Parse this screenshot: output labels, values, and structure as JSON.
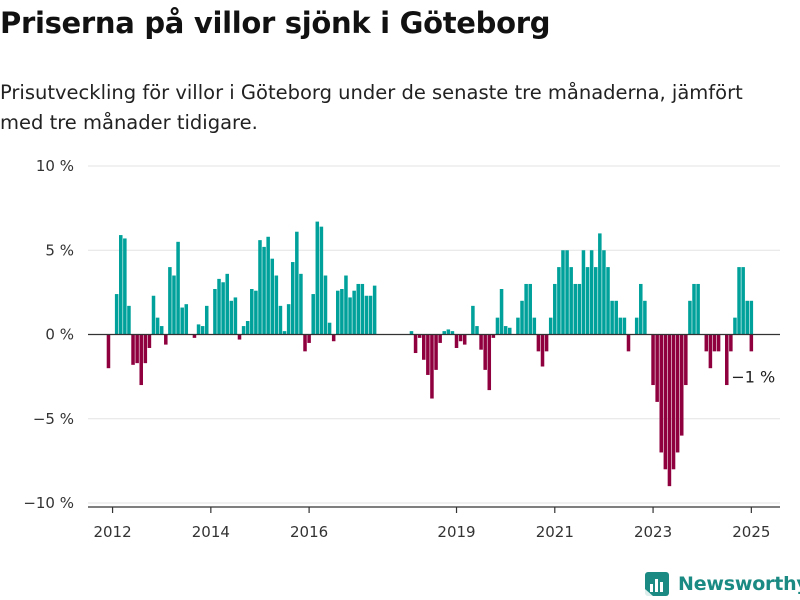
{
  "brand": {
    "name": "Newsworthy",
    "icon": "bar-chart-logo-icon",
    "color": "#1b8a83"
  },
  "chart_data": {
    "type": "bar",
    "title": "Priserna på villor sjönk i Göteborg",
    "subtitle": "Prisutveckling för villor i Göteborg under de senaste tre månaderna, jämfört med tre månader tidigare.",
    "xlabel": "",
    "ylabel": "",
    "ylim": [
      -10,
      10
    ],
    "xlim": [
      "2011-07",
      "2025-08"
    ],
    "grid": true,
    "legend": "none",
    "y_ticks": [
      {
        "value": 10,
        "label": "10 %"
      },
      {
        "value": 5,
        "label": "5 %"
      },
      {
        "value": 0,
        "label": "0 %"
      },
      {
        "value": -5,
        "label": "−5 %"
      },
      {
        "value": -10,
        "label": "−10 %"
      }
    ],
    "x_ticks": [
      {
        "date": "2012-01",
        "label": "2012"
      },
      {
        "date": "2014-01",
        "label": "2014"
      },
      {
        "date": "2016-01",
        "label": "2016"
      },
      {
        "date": "2019-01",
        "label": "2019"
      },
      {
        "date": "2021-01",
        "label": "2021"
      },
      {
        "date": "2023-01",
        "label": "2023"
      },
      {
        "date": "2025-01",
        "label": "2025"
      }
    ],
    "colors": {
      "positive": "#00a19a",
      "negative": "#8f003f"
    },
    "annotation": {
      "label": "−1 %",
      "date": "2025-01",
      "value": -1
    },
    "series": [
      {
        "start": "2011-12",
        "end": "2017-08",
        "values": [
          -2.0,
          0,
          2.4,
          5.9,
          5.7,
          1.7,
          -1.8,
          -1.7,
          -3.0,
          -1.7,
          -0.8,
          2.3,
          1.0,
          0.5,
          -0.6,
          4.0,
          3.5,
          5.5,
          1.6,
          1.8,
          0,
          -0.2,
          0.6,
          0.5,
          1.7,
          0,
          2.7,
          3.3,
          3.1,
          3.6,
          2.0,
          2.2,
          -0.3,
          0.5,
          0.8,
          2.7,
          2.6,
          5.6,
          5.2,
          5.8,
          4.5,
          3.5,
          1.7,
          0.2,
          1.8,
          4.3,
          6.1,
          3.6,
          -1.0,
          -0.5,
          2.4,
          6.7,
          6.4,
          3.5,
          0.7,
          -0.4,
          2.6,
          2.7,
          3.5,
          2.2,
          2.6,
          3.0,
          3.0,
          2.3,
          2.3,
          2.9
        ]
      },
      {
        "start": "2018-02",
        "end": "2024-12",
        "values": [
          0.2,
          -1.1,
          -0.2,
          -1.5,
          -2.4,
          -3.8,
          -2.1,
          -0.5,
          0.2,
          0.3,
          0.2,
          -0.8,
          -0.4,
          -0.6,
          0,
          1.7,
          0.5,
          -0.9,
          -2.1,
          -3.3,
          -0.2,
          1.0,
          2.7,
          0.5,
          0.4,
          0,
          1.0,
          2.0,
          3.0,
          3.0,
          1.0,
          -1.0,
          -1.9,
          -1.0,
          1.0,
          3.0,
          4.0,
          5.0,
          5.0,
          4.0,
          3.0,
          3.0,
          5.0,
          4.0,
          5.0,
          4.0,
          6.0,
          5.0,
          4.0,
          2.0,
          2.0,
          1.0,
          1.0,
          -1.0,
          0,
          1.0,
          3.0,
          2.0,
          0,
          -3.0,
          -4.0,
          -7.0,
          -8.0,
          -9.0,
          -8.0,
          -7.0,
          -6.0,
          -3.0,
          2.0,
          3.0,
          3.0,
          0,
          -1.0,
          -2.0,
          -1.0,
          -1.0,
          0,
          -3.0,
          -1.0,
          1.0,
          4.0,
          4.0,
          2.0,
          2.0
        ]
      },
      {
        "start": "2024-12",
        "end": "2025-01",
        "values": [
          1.0,
          -1.0
        ]
      }
    ]
  }
}
